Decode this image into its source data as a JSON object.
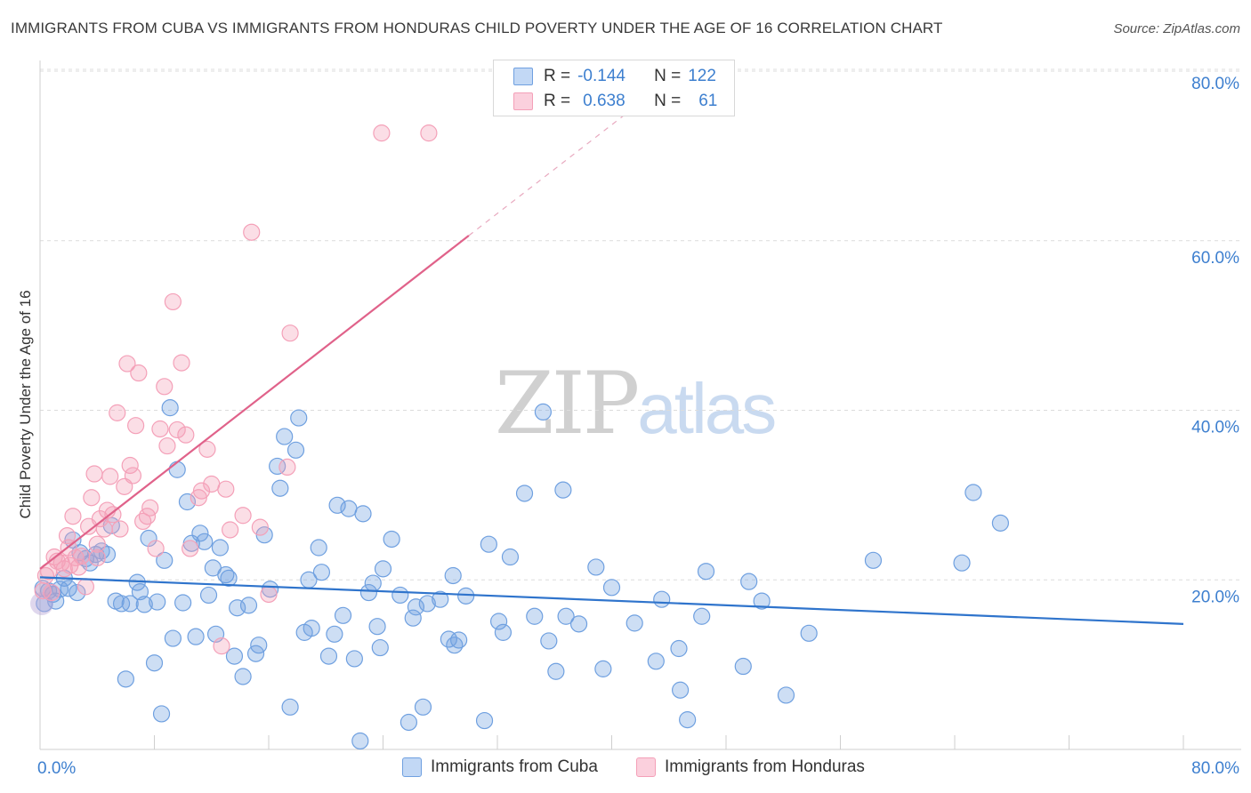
{
  "title": "IMMIGRANTS FROM CUBA VS IMMIGRANTS FROM HONDURAS CHILD POVERTY UNDER THE AGE OF 16 CORRELATION CHART",
  "source": "Source: ZipAtlas.com",
  "watermark": {
    "zip": "ZIP",
    "atlas": "atlas"
  },
  "colors": {
    "cuba": "#6fa0e0",
    "honduras": "#f4a0b8",
    "cuba_line": "#2f74cc",
    "honduras_line": "#e0628a",
    "tick_label": "#3d7fcf"
  },
  "legend": {
    "cuba": {
      "r_label": "R =",
      "r_value": "-0.144",
      "n_label": "N =",
      "n_value": "122"
    },
    "honduras": {
      "r_label": "R =",
      "r_value": "0.638",
      "n_label": "N =",
      "n_value": "61"
    }
  },
  "bottom_legend": {
    "cuba": "Immigrants from Cuba",
    "honduras": "Immigrants from Honduras"
  },
  "chart_data": {
    "type": "scatter",
    "title": "IMMIGRANTS FROM CUBA VS IMMIGRANTS FROM HONDURAS CHILD POVERTY UNDER THE AGE OF 16 CORRELATION CHART",
    "xlabel": "",
    "ylabel": "Child Poverty Under the Age of 16",
    "xlim": [
      0,
      80
    ],
    "ylim": [
      0,
      80
    ],
    "x_tick_labels": [
      "0.0%",
      "80.0%"
    ],
    "y_tick_labels": [
      "20.0%",
      "40.0%",
      "60.0%",
      "80.0%"
    ],
    "y_ticks": [
      20,
      40,
      60,
      80
    ],
    "grid": true,
    "legend_position": "top-center",
    "series": [
      {
        "name": "Immigrants from Cuba",
        "trend": {
          "x": [
            0,
            80
          ],
          "y": [
            20.3,
            14.8
          ]
        },
        "points": [
          [
            0.3,
            17.2
          ],
          [
            0.6,
            18.7
          ],
          [
            0.9,
            18.3
          ],
          [
            1.1,
            17.5
          ],
          [
            1.4,
            18.9
          ],
          [
            1.7,
            20.2
          ],
          [
            2.0,
            19.0
          ],
          [
            2.3,
            24.7
          ],
          [
            2.6,
            18.5
          ],
          [
            2.8,
            23.2
          ],
          [
            3.2,
            22.5
          ],
          [
            3.5,
            22.0
          ],
          [
            3.9,
            23.0
          ],
          [
            4.3,
            23.4
          ],
          [
            4.7,
            23.0
          ],
          [
            5.0,
            26.4
          ],
          [
            5.3,
            17.5
          ],
          [
            5.7,
            17.2
          ],
          [
            6.0,
            8.3
          ],
          [
            6.3,
            17.2
          ],
          [
            6.8,
            19.7
          ],
          [
            7.0,
            18.6
          ],
          [
            7.3,
            17.1
          ],
          [
            7.6,
            24.9
          ],
          [
            8.0,
            10.2
          ],
          [
            8.2,
            17.4
          ],
          [
            8.5,
            4.2
          ],
          [
            8.7,
            22.3
          ],
          [
            9.1,
            40.3
          ],
          [
            9.3,
            13.1
          ],
          [
            9.6,
            33.0
          ],
          [
            10.0,
            17.3
          ],
          [
            10.3,
            29.2
          ],
          [
            10.6,
            24.3
          ],
          [
            10.9,
            13.3
          ],
          [
            11.2,
            25.5
          ],
          [
            11.5,
            24.5
          ],
          [
            11.8,
            18.2
          ],
          [
            12.1,
            21.4
          ],
          [
            12.3,
            13.6
          ],
          [
            12.6,
            23.8
          ],
          [
            13.0,
            20.6
          ],
          [
            13.2,
            20.2
          ],
          [
            13.6,
            11.0
          ],
          [
            13.8,
            16.7
          ],
          [
            14.2,
            8.6
          ],
          [
            14.6,
            17.0
          ],
          [
            15.1,
            11.3
          ],
          [
            15.3,
            12.3
          ],
          [
            15.7,
            25.3
          ],
          [
            16.1,
            18.9
          ],
          [
            16.6,
            33.4
          ],
          [
            16.8,
            30.8
          ],
          [
            17.1,
            36.9
          ],
          [
            17.5,
            5.0
          ],
          [
            17.9,
            35.3
          ],
          [
            18.1,
            39.1
          ],
          [
            18.5,
            13.8
          ],
          [
            18.8,
            20.0
          ],
          [
            19.0,
            14.3
          ],
          [
            19.5,
            23.8
          ],
          [
            19.7,
            20.9
          ],
          [
            20.2,
            11.0
          ],
          [
            20.6,
            13.6
          ],
          [
            20.8,
            28.8
          ],
          [
            21.2,
            15.8
          ],
          [
            21.6,
            28.4
          ],
          [
            22.0,
            10.7
          ],
          [
            22.4,
            1.0
          ],
          [
            22.6,
            27.8
          ],
          [
            23.0,
            18.5
          ],
          [
            23.3,
            19.6
          ],
          [
            23.6,
            14.5
          ],
          [
            23.8,
            12.0
          ],
          [
            24.0,
            21.3
          ],
          [
            24.6,
            24.8
          ],
          [
            25.2,
            18.2
          ],
          [
            25.8,
            3.2
          ],
          [
            26.1,
            15.5
          ],
          [
            26.3,
            16.8
          ],
          [
            26.8,
            5.0
          ],
          [
            27.1,
            17.2
          ],
          [
            28.0,
            17.7
          ],
          [
            28.6,
            13.0
          ],
          [
            28.9,
            20.5
          ],
          [
            29.0,
            12.3
          ],
          [
            29.3,
            12.9
          ],
          [
            29.8,
            18.1
          ],
          [
            31.1,
            3.4
          ],
          [
            31.4,
            24.2
          ],
          [
            32.1,
            15.1
          ],
          [
            32.4,
            13.8
          ],
          [
            32.9,
            22.7
          ],
          [
            33.9,
            30.2
          ],
          [
            34.6,
            15.7
          ],
          [
            35.2,
            39.8
          ],
          [
            35.6,
            12.8
          ],
          [
            36.1,
            9.2
          ],
          [
            36.6,
            30.6
          ],
          [
            36.8,
            15.7
          ],
          [
            37.7,
            14.8
          ],
          [
            38.9,
            21.5
          ],
          [
            39.4,
            9.5
          ],
          [
            40.0,
            19.1
          ],
          [
            41.6,
            14.9
          ],
          [
            43.1,
            10.4
          ],
          [
            43.5,
            17.7
          ],
          [
            44.7,
            11.9
          ],
          [
            44.8,
            7.0
          ],
          [
            45.3,
            3.5
          ],
          [
            46.3,
            15.7
          ],
          [
            46.6,
            21.0
          ],
          [
            49.2,
            9.8
          ],
          [
            49.6,
            19.8
          ],
          [
            50.5,
            17.5
          ],
          [
            52.2,
            6.4
          ],
          [
            53.8,
            13.7
          ],
          [
            58.3,
            22.3
          ],
          [
            64.5,
            22.0
          ],
          [
            65.3,
            30.3
          ],
          [
            67.2,
            26.7
          ],
          [
            0.2,
            19.0
          ]
        ]
      },
      {
        "name": "Immigrants from Honduras",
        "trend": {
          "x": [
            0,
            30
          ],
          "y": [
            21.3,
            60.6
          ]
        },
        "trend_dashed": {
          "x": [
            30,
            45
          ],
          "y": [
            60.6,
            80.2
          ]
        },
        "points": [
          [
            0.2,
            18.7
          ],
          [
            0.4,
            20.5
          ],
          [
            0.6,
            21.0
          ],
          [
            0.8,
            18.5
          ],
          [
            1.0,
            22.7
          ],
          [
            1.2,
            22.2
          ],
          [
            1.5,
            22.0
          ],
          [
            1.7,
            21.3
          ],
          [
            1.9,
            25.2
          ],
          [
            2.1,
            21.7
          ],
          [
            2.3,
            27.5
          ],
          [
            2.5,
            22.6
          ],
          [
            2.7,
            21.5
          ],
          [
            2.9,
            22.8
          ],
          [
            3.2,
            19.2
          ],
          [
            3.4,
            26.3
          ],
          [
            3.6,
            29.7
          ],
          [
            3.8,
            32.5
          ],
          [
            4.0,
            24.2
          ],
          [
            4.2,
            27.2
          ],
          [
            4.5,
            26.0
          ],
          [
            4.7,
            28.2
          ],
          [
            4.9,
            32.2
          ],
          [
            5.1,
            27.7
          ],
          [
            5.4,
            39.7
          ],
          [
            5.6,
            26.0
          ],
          [
            5.9,
            31.0
          ],
          [
            6.1,
            45.5
          ],
          [
            6.3,
            33.5
          ],
          [
            6.5,
            32.3
          ],
          [
            6.7,
            38.2
          ],
          [
            6.9,
            44.4
          ],
          [
            7.2,
            26.9
          ],
          [
            7.5,
            27.5
          ],
          [
            7.7,
            28.5
          ],
          [
            8.1,
            23.7
          ],
          [
            8.4,
            37.8
          ],
          [
            8.7,
            42.8
          ],
          [
            8.9,
            35.8
          ],
          [
            9.3,
            52.8
          ],
          [
            9.6,
            37.7
          ],
          [
            9.9,
            45.6
          ],
          [
            10.2,
            37.1
          ],
          [
            10.5,
            23.7
          ],
          [
            11.1,
            29.7
          ],
          [
            11.3,
            30.5
          ],
          [
            11.7,
            35.4
          ],
          [
            12.0,
            31.3
          ],
          [
            12.7,
            12.2
          ],
          [
            13.0,
            30.7
          ],
          [
            13.3,
            25.9
          ],
          [
            14.2,
            27.6
          ],
          [
            14.8,
            61.0
          ],
          [
            15.4,
            26.2
          ],
          [
            16.0,
            18.3
          ],
          [
            17.5,
            49.1
          ],
          [
            17.3,
            33.3
          ],
          [
            23.9,
            72.7
          ],
          [
            27.2,
            72.7
          ],
          [
            4.0,
            22.6
          ],
          [
            2.0,
            23.8
          ]
        ]
      }
    ]
  }
}
